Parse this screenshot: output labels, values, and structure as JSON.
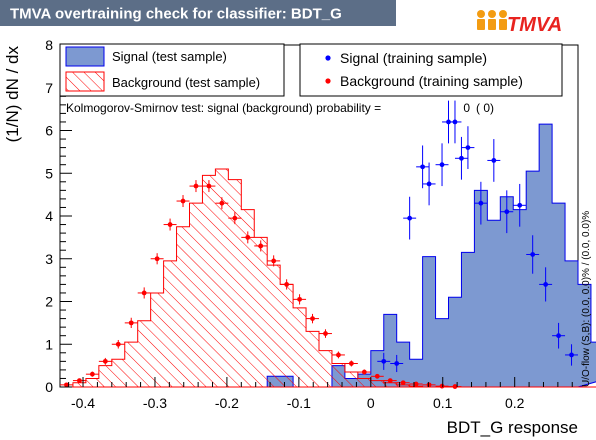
{
  "header": {
    "title": "TMVA overtraining check for classifier: BDT_G",
    "logo_text": "TMVA"
  },
  "colors": {
    "header_bg": "#5c6e87",
    "header_text": "#ffffff",
    "signal_fill": "#7d99d1",
    "signal_line": "#0000ee",
    "background_hatch": "#ff0000",
    "signal_points": "#0000ff",
    "background_points": "#ff0000",
    "logo_orange": "#f39c12",
    "logo_red": "#e8231f"
  },
  "legend": {
    "signal_test": "Signal (test sample)",
    "background_test": "Background (test sample)",
    "signal_train": "Signal (training sample)",
    "background_train": "Background (training sample)"
  },
  "annotations": {
    "ks_label": "Kolmogorov-Smirnov test: signal (background) probability =",
    "ks_value_sig": "0",
    "ks_value_bkg": "(    0)",
    "overflow": "U/O-flow (S,B): (0.0, 0.0)% / (0.0, 0.0)%"
  },
  "chart_data": {
    "type": "histogram",
    "title": "TMVA overtraining check for classifier: BDT_G",
    "xlabel": "BDT_G response",
    "ylabel": "(1/N) dN / dx",
    "xlim": [
      -0.432,
      0.288
    ],
    "ylim": [
      0,
      8
    ],
    "bin_width": 0.018,
    "xticks": [
      -0.4,
      -0.3,
      -0.2,
      -0.1,
      0,
      0.1,
      0.2
    ],
    "xtick_labels": [
      "-0.4",
      "-0.3",
      "-0.2",
      "-0.1",
      "0",
      "0.1",
      "0.2"
    ],
    "yticks": [
      0,
      1,
      2,
      3,
      4,
      5,
      6,
      7,
      8
    ],
    "ytick_labels": [
      "0",
      "1",
      "2",
      "3",
      "4",
      "5",
      "6",
      "7",
      "8"
    ],
    "signal_test": [
      0,
      0,
      0,
      0,
      0,
      0,
      0,
      0,
      0,
      0,
      0,
      0,
      0,
      0,
      0,
      0,
      0.25,
      0.25,
      0,
      0,
      0,
      0.5,
      0.2,
      0.3,
      0.85,
      1.7,
      1.05,
      0.65,
      3.05,
      1.6,
      2.1,
      3.15,
      4.6,
      3.9,
      4.45,
      4.15,
      5.05,
      6.15,
      4.3,
      2.95,
      2.4,
      1.05,
      0.75,
      0.35
    ],
    "background_test": [
      0,
      0.1,
      0.2,
      0.5,
      0.65,
      1.05,
      1.55,
      2.2,
      2.95,
      3.75,
      4.3,
      4.95,
      5.1,
      4.85,
      4.15,
      3.5,
      2.85,
      2.4,
      1.85,
      1.3,
      0.85,
      0.55,
      0.35,
      0.2,
      0.15,
      0.1,
      0.05,
      0.02,
      0,
      0,
      0,
      0,
      0,
      0,
      0,
      0,
      0,
      0,
      0,
      0,
      0,
      0,
      0,
      0
    ],
    "signal_train": {
      "x": [
        0.018,
        0.036,
        0.054,
        0.072,
        0.081,
        0.099,
        0.108,
        0.117,
        0.126,
        0.135,
        0.153,
        0.171,
        0.189,
        0.207,
        0.225,
        0.243,
        0.261,
        0.279
      ],
      "y": [
        0.6,
        0.55,
        3.95,
        5.15,
        4.75,
        5.2,
        6.2,
        6.2,
        5.35,
        5.6,
        4.3,
        5.3,
        4.1,
        4.25,
        3.1,
        2.4,
        1.2,
        0.75
      ],
      "yerr": [
        0.2,
        0.2,
        0.5,
        0.5,
        0.5,
        0.5,
        0.5,
        0.5,
        0.5,
        0.5,
        0.5,
        0.5,
        0.5,
        0.5,
        0.45,
        0.4,
        0.3,
        0.25
      ]
    },
    "background_train": {
      "x": [
        -0.423,
        -0.405,
        -0.387,
        -0.369,
        -0.351,
        -0.333,
        -0.315,
        -0.297,
        -0.279,
        -0.261,
        -0.243,
        -0.225,
        -0.207,
        -0.189,
        -0.171,
        -0.153,
        -0.135,
        -0.117,
        -0.099,
        -0.081,
        -0.063,
        -0.045,
        -0.027,
        -0.009,
        0.009,
        0.027,
        0.045,
        0.063,
        0.081,
        0.099,
        0.117
      ],
      "y": [
        0.05,
        0.15,
        0.3,
        0.6,
        1.0,
        1.5,
        2.2,
        3.0,
        3.8,
        4.35,
        4.7,
        4.7,
        4.3,
        3.95,
        3.5,
        3.3,
        2.95,
        2.4,
        2.05,
        1.6,
        1.25,
        0.75,
        0.55,
        0.35,
        0.25,
        0.15,
        0.1,
        0.07,
        0.05,
        0.02,
        0.01
      ],
      "yerr": [
        0.03,
        0.05,
        0.06,
        0.08,
        0.1,
        0.12,
        0.13,
        0.13,
        0.14,
        0.14,
        0.14,
        0.14,
        0.14,
        0.14,
        0.14,
        0.13,
        0.13,
        0.12,
        0.12,
        0.11,
        0.1,
        0.08,
        0.07,
        0.06,
        0.05,
        0.04,
        0.03,
        0.03,
        0.02,
        0.02,
        0.01
      ]
    }
  }
}
